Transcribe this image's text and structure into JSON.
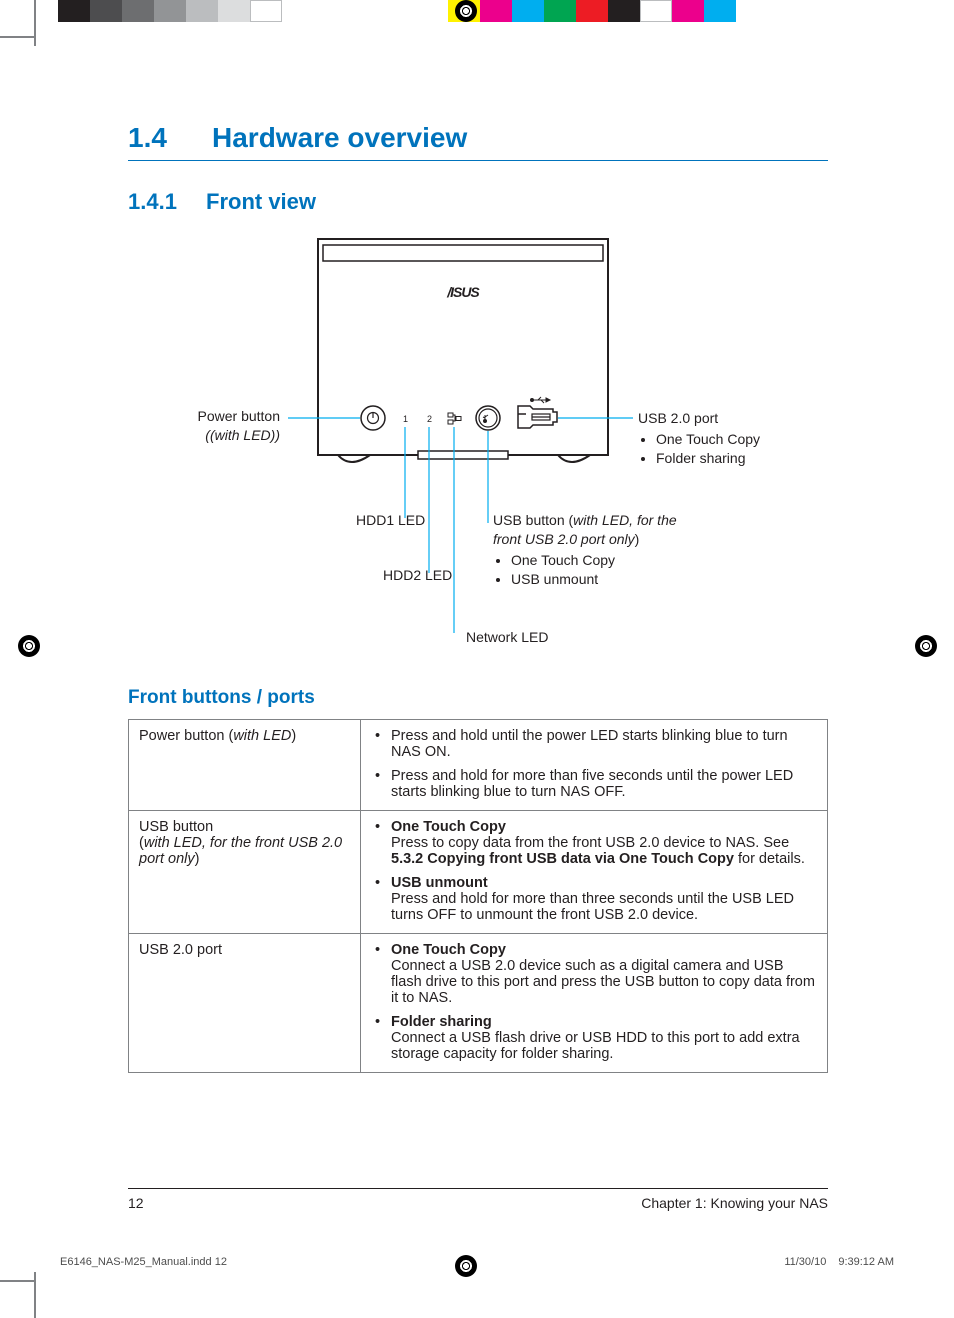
{
  "colorbars": {
    "left": [
      "#231f20",
      "#4d4d4f",
      "#6d6e70",
      "#929496",
      "#bbbdbf",
      "#dcddde",
      "#ffffff"
    ],
    "right": [
      "#fff200",
      "#ec008c",
      "#00aeef",
      "#00a551",
      "#ed1c24",
      "#231f20",
      "#ffffff",
      "#ec008c",
      "#00aeef"
    ]
  },
  "section": {
    "num": "1.4",
    "title": "Hardware overview"
  },
  "subsection": {
    "num": "1.4.1",
    "title": "Front view"
  },
  "diagram": {
    "device_numbers": [
      "1",
      "2"
    ],
    "labels": {
      "power": {
        "title": "Power button",
        "sub": "(with LED)"
      },
      "hdd1": "HDD1 LED",
      "hdd2": "HDD2 LED",
      "network": "Network LED",
      "usb_button": {
        "title_pre": "USB button (",
        "title_em": "with LED, for the front USB 2.0 port only",
        "title_post": ")",
        "items": [
          "One Touch Copy",
          "USB unmount"
        ]
      },
      "usb_port": {
        "title": "USB 2.0 port",
        "items": [
          "One Touch Copy",
          "Folder sharing"
        ]
      }
    }
  },
  "table_heading": "Front buttons / ports",
  "table": [
    {
      "name_pre": "Power button (",
      "name_em": "with LED",
      "name_post": ")",
      "items": [
        {
          "text": "Press and hold until the power LED starts blinking blue to turn NAS ON."
        },
        {
          "text": "Press and hold for more than five seconds until the power LED starts blinking blue to turn NAS OFF."
        }
      ]
    },
    {
      "name_line1": "USB button",
      "name_em_line2_pre": "(",
      "name_em_line2": "with LED, for the front USB 2.0 port only",
      "name_em_line2_post": ")",
      "items": [
        {
          "bold": "One Touch Copy",
          "text_pre": "Press to copy data from the front USB 2.0 device to NAS. See ",
          "text_bold": "5.3.2 Copying front USB data via One Touch Copy",
          "text_post": " for details."
        },
        {
          "bold": "USB unmount",
          "text": "Press and hold for more than three seconds until the USB LED turns OFF to unmount the front USB 2.0 device."
        }
      ]
    },
    {
      "name": "USB 2.0 port",
      "items": [
        {
          "bold": "One Touch Copy",
          "text": "Connect a USB 2.0 device such as a digital camera and USB flash drive to this port and press the USB button to copy data from it to NAS."
        },
        {
          "bold": "Folder sharing",
          "text": "Connect a USB flash drive or USB HDD to this port to add extra storage capacity for folder sharing."
        }
      ]
    }
  ],
  "footer": {
    "page": "12",
    "chapter": "Chapter 1: Knowing your NAS"
  },
  "slug": {
    "file": "E6146_NAS-M25_Manual.indd   12",
    "date": "11/30/10",
    "time": "9:39:12 AM"
  }
}
